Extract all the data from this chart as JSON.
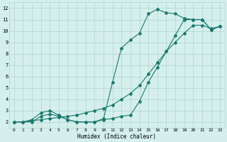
{
  "xlabel": "Humidex (Indice chaleur)",
  "xlim": [
    -0.5,
    23.5
  ],
  "ylim": [
    1.5,
    12.5
  ],
  "yticks": [
    2,
    3,
    4,
    5,
    6,
    7,
    8,
    9,
    10,
    11,
    12
  ],
  "xticks": [
    0,
    1,
    2,
    3,
    4,
    5,
    6,
    7,
    8,
    9,
    10,
    11,
    12,
    13,
    14,
    15,
    16,
    17,
    18,
    19,
    20,
    21,
    22,
    23
  ],
  "line_color": "#1a7a6e",
  "bg_color": "#d4efec",
  "grid_color": "#aed4cf",
  "curve1_x": [
    0,
    1,
    2,
    3,
    4,
    5,
    6,
    7,
    8,
    9,
    10,
    11,
    12,
    13,
    14,
    15,
    16,
    17,
    18,
    19,
    20,
    21,
    22,
    23
  ],
  "curve1_y": [
    2.0,
    2.0,
    2.2,
    2.8,
    3.0,
    2.6,
    2.2,
    2.0,
    2.0,
    2.0,
    2.2,
    2.3,
    2.5,
    2.6,
    3.8,
    5.5,
    6.8,
    8.2,
    9.6,
    11.0,
    11.0,
    11.0,
    10.1,
    10.4
  ],
  "curve2_x": [
    0,
    1,
    2,
    3,
    4,
    5,
    6,
    7,
    8,
    9,
    10,
    11,
    12,
    13,
    14,
    15,
    16,
    17,
    18,
    19,
    20,
    21,
    22,
    23
  ],
  "curve2_y": [
    2.0,
    2.0,
    2.0,
    2.5,
    2.7,
    2.5,
    2.2,
    2.0,
    2.0,
    2.0,
    2.3,
    5.5,
    8.5,
    9.2,
    9.8,
    11.5,
    11.9,
    11.6,
    11.5,
    11.1,
    11.0,
    11.0,
    10.1,
    10.4
  ],
  "curve3_x": [
    0,
    1,
    2,
    3,
    4,
    5,
    6,
    7,
    8,
    9,
    10,
    11,
    12,
    13,
    14,
    15,
    16,
    17,
    18,
    19,
    20,
    21,
    22,
    23
  ],
  "curve3_y": [
    2.0,
    2.0,
    2.1,
    2.2,
    2.3,
    2.4,
    2.5,
    2.6,
    2.8,
    3.0,
    3.2,
    3.5,
    4.0,
    4.5,
    5.2,
    6.2,
    7.2,
    8.2,
    9.0,
    9.8,
    10.5,
    10.5,
    10.2,
    10.4
  ]
}
